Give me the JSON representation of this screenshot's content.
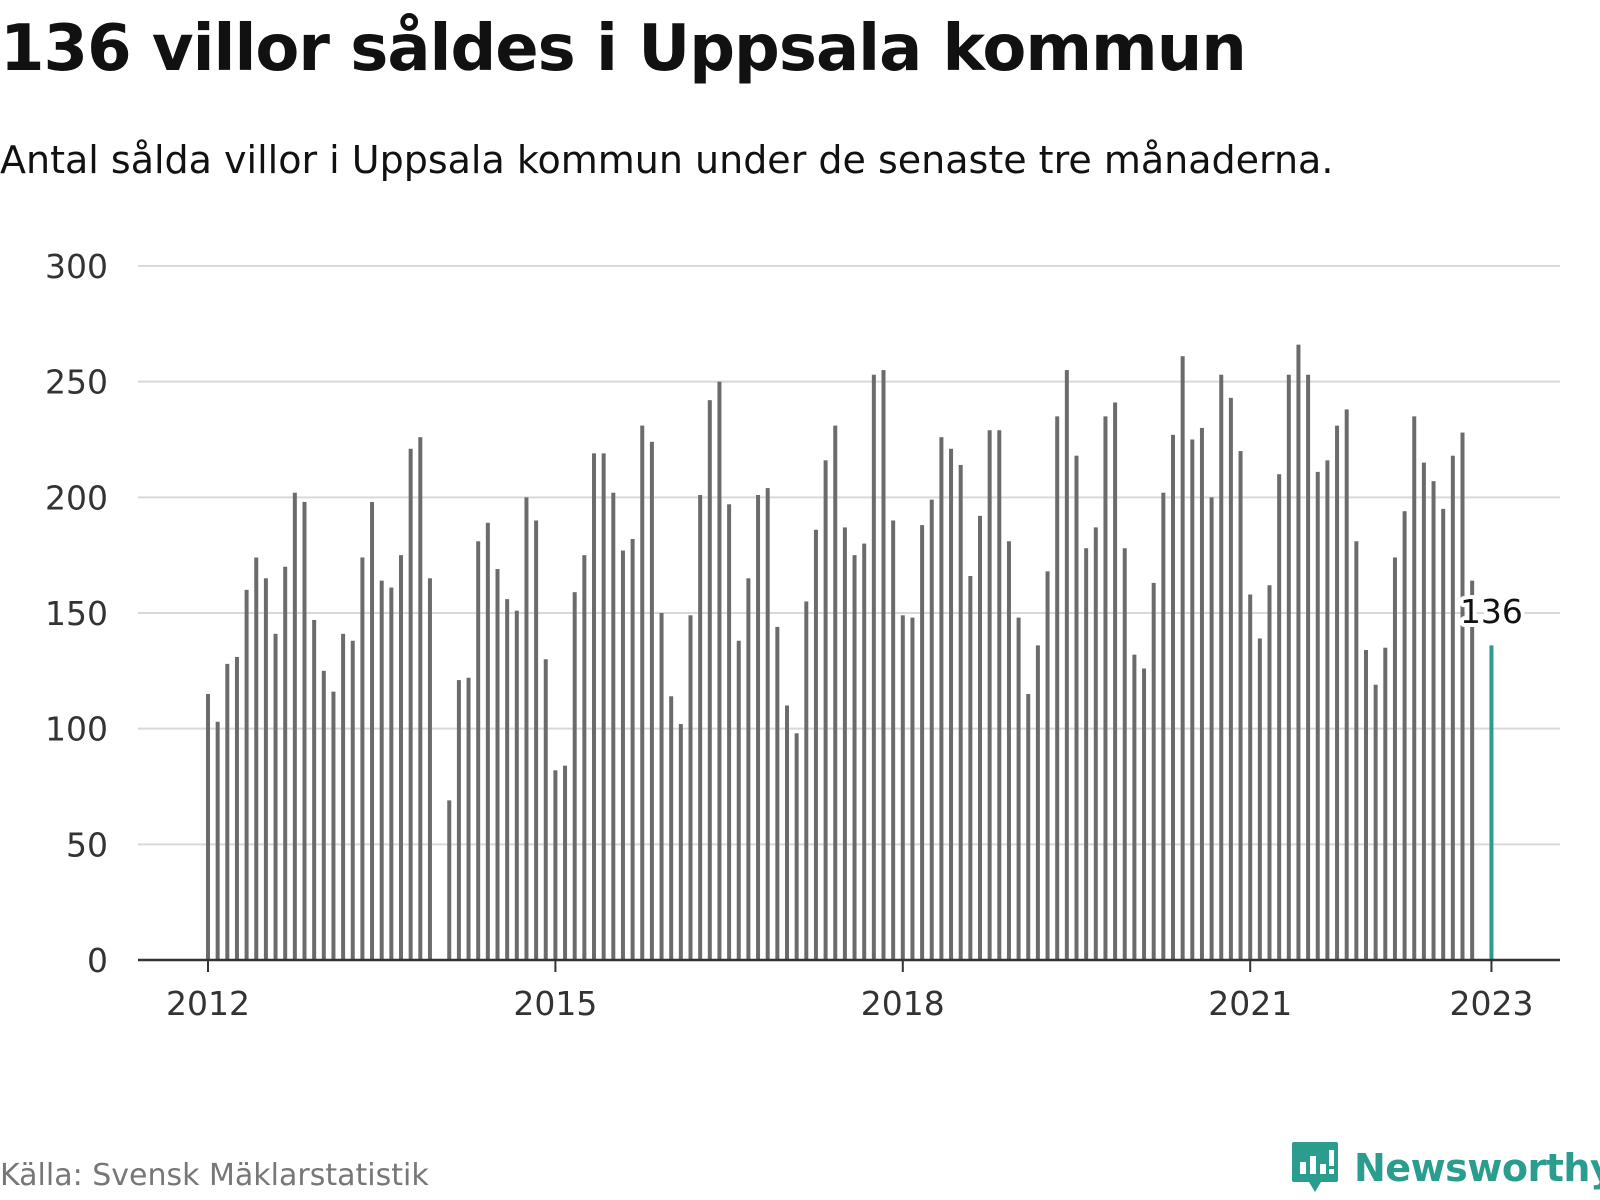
{
  "header": {
    "title": "136 villor såldes i Uppsala kommun",
    "subtitle": "Antal sålda villor i Uppsala kommun under de senaste tre månaderna."
  },
  "footer": {
    "source": "Källa: Svensk Mäklarstatistik",
    "brand": "Newsworthy"
  },
  "colors": {
    "bar": "#6b6b6b",
    "highlight": "#2a9d8f",
    "grid": "#d9d9d9",
    "axis": "#333333"
  },
  "icons": {
    "logo": "bar-chart-speech-bubble-icon"
  },
  "chart_data": {
    "type": "bar",
    "title": "136 villor såldes i Uppsala kommun",
    "subtitle": "Antal sålda villor i Uppsala kommun under de senaste tre månaderna.",
    "xlabel": "",
    "ylabel": "",
    "ylim": [
      0,
      300
    ],
    "yticks": [
      0,
      50,
      100,
      150,
      200,
      250,
      300
    ],
    "x_start": "2012-01",
    "x_end": "2023-02",
    "xticks": [
      {
        "label": "2012",
        "date": "2012-01"
      },
      {
        "label": "2015",
        "date": "2015-01"
      },
      {
        "label": "2018",
        "date": "2018-01"
      },
      {
        "label": "2021",
        "date": "2021-01"
      },
      {
        "label": "2023",
        "date": "2023-02"
      }
    ],
    "grid": true,
    "highlight": {
      "date": "2023-02",
      "value": 136,
      "label": "136"
    },
    "series": [
      {
        "dates": [
          "2012-01",
          "2012-02",
          "2012-03",
          "2012-04",
          "2012-05",
          "2012-06",
          "2012-07",
          "2012-08",
          "2012-09",
          "2012-10",
          "2012-11",
          "2012-12",
          "2013-01",
          "2013-02",
          "2013-03",
          "2013-04",
          "2013-05",
          "2013-06",
          "2013-07",
          "2013-08",
          "2013-09",
          "2013-10",
          "2013-11",
          "2013-12",
          "2014-01",
          "2014-02",
          "2014-03",
          "2014-04",
          "2014-05",
          "2014-06",
          "2014-07",
          "2014-08",
          "2014-09",
          "2014-10",
          "2014-11",
          "2014-12",
          "2015-01",
          "2015-02",
          "2015-03",
          "2015-04",
          "2015-05",
          "2015-06",
          "2015-07",
          "2015-08",
          "2015-09",
          "2015-10",
          "2015-11",
          "2015-12",
          "2016-01",
          "2016-02",
          "2016-03",
          "2016-04",
          "2016-05",
          "2016-06",
          "2016-07",
          "2016-08",
          "2016-09",
          "2016-10",
          "2016-11",
          "2016-12",
          "2017-01",
          "2017-02",
          "2017-03",
          "2017-04",
          "2017-05",
          "2017-06",
          "2017-07",
          "2017-08",
          "2017-09",
          "2017-10",
          "2017-11",
          "2017-12",
          "2018-01",
          "2018-02",
          "2018-03",
          "2018-04",
          "2018-05",
          "2018-06",
          "2018-07",
          "2018-08",
          "2018-09",
          "2018-10",
          "2018-11",
          "2018-12",
          "2019-01",
          "2019-02",
          "2019-03",
          "2019-04",
          "2019-05",
          "2019-06",
          "2019-07",
          "2019-08",
          "2019-09",
          "2019-10",
          "2019-11",
          "2019-12",
          "2020-01",
          "2020-02",
          "2020-03",
          "2020-04",
          "2020-05",
          "2020-06",
          "2020-07",
          "2020-08",
          "2020-09",
          "2020-10",
          "2020-11",
          "2020-12",
          "2021-01",
          "2021-02",
          "2021-03",
          "2021-04",
          "2021-05",
          "2021-06",
          "2021-07",
          "2021-08",
          "2021-09",
          "2021-10",
          "2021-11",
          "2021-12",
          "2022-01",
          "2022-02",
          "2022-03",
          "2022-04",
          "2022-05",
          "2022-06",
          "2022-07",
          "2022-08",
          "2022-09",
          "2022-10",
          "2022-11",
          "2022-12",
          "2023-01",
          "2023-02"
        ],
        "values": [
          115,
          103,
          128,
          131,
          160,
          174,
          165,
          141,
          170,
          202,
          198,
          147,
          125,
          116,
          141,
          138,
          174,
          198,
          164,
          161,
          175,
          221,
          226,
          165,
          null,
          69,
          121,
          122,
          181,
          189,
          169,
          156,
          151,
          200,
          190,
          130,
          82,
          84,
          159,
          175,
          219,
          219,
          202,
          177,
          182,
          231,
          224,
          150,
          114,
          102,
          149,
          201,
          242,
          250,
          197,
          138,
          165,
          201,
          204,
          144,
          110,
          98,
          155,
          186,
          216,
          231,
          187,
          175,
          180,
          253,
          255,
          190,
          149,
          148,
          188,
          199,
          226,
          221,
          214,
          166,
          192,
          229,
          229,
          181,
          148,
          115,
          136,
          168,
          235,
          255,
          218,
          178,
          187,
          235,
          241,
          178,
          132,
          126,
          163,
          202,
          227,
          261,
          225,
          230,
          200,
          253,
          243,
          220,
          158,
          139,
          162,
          210,
          253,
          266,
          253,
          211,
          216,
          231,
          238,
          181,
          134,
          119,
          135,
          174,
          194,
          235,
          215,
          207,
          195,
          218,
          228,
          164,
          null,
          136
        ]
      }
    ]
  }
}
